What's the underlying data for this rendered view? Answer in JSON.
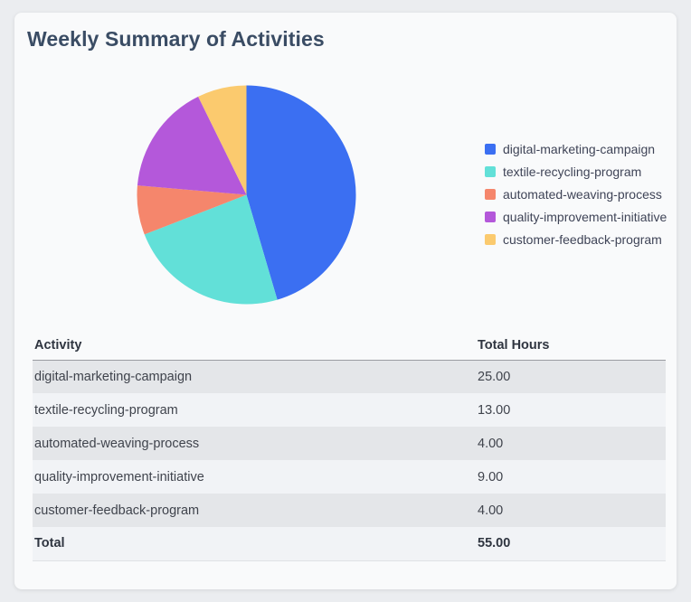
{
  "card": {
    "title": "Weekly Summary of Activities"
  },
  "chart_data": {
    "type": "pie",
    "title": "Weekly Summary of Activities",
    "legend_position": "right",
    "start_angle_deg": 0,
    "direction": "clockwise",
    "total_hours": 55,
    "series": [
      {
        "label": "digital-marketing-campaign",
        "value": 25,
        "color": "#3b6ff2"
      },
      {
        "label": "textile-recycling-program",
        "value": 13,
        "color": "#62e0d8"
      },
      {
        "label": "automated-weaving-process",
        "value": 4,
        "color": "#f5866c"
      },
      {
        "label": "quality-improvement-initiative",
        "value": 9,
        "color": "#b458da"
      },
      {
        "label": "customer-feedback-program",
        "value": 4,
        "color": "#fbca6e"
      }
    ]
  },
  "table": {
    "columns": {
      "activity": "Activity",
      "hours": "Total Hours"
    },
    "rows": [
      {
        "activity": "digital-marketing-campaign",
        "hours": "25.00"
      },
      {
        "activity": "textile-recycling-program",
        "hours": "13.00"
      },
      {
        "activity": "automated-weaving-process",
        "hours": "4.00"
      },
      {
        "activity": "quality-improvement-initiative",
        "hours": "9.00"
      },
      {
        "activity": "customer-feedback-program",
        "hours": "4.00"
      }
    ],
    "total": {
      "label": "Total",
      "hours": "55.00"
    }
  }
}
